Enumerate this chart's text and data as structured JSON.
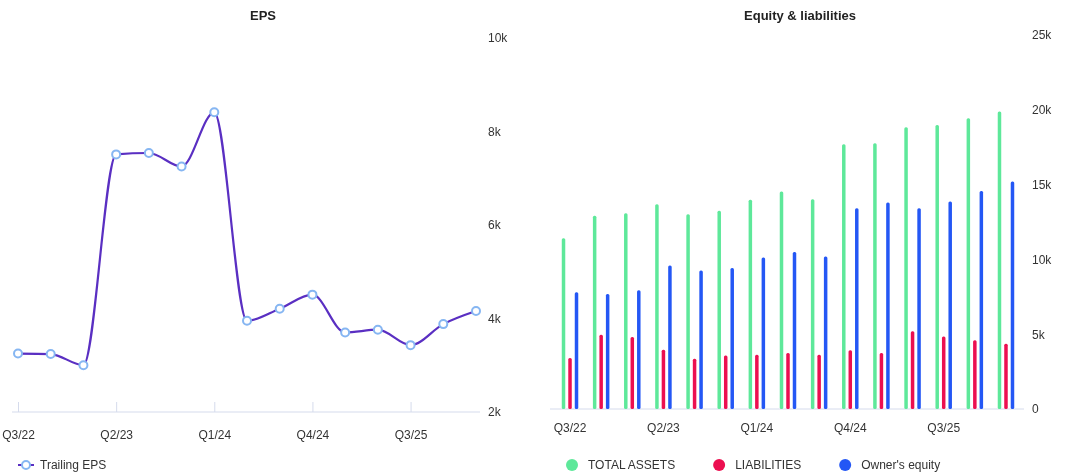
{
  "chart_data": [
    {
      "type": "line",
      "title": "EPS",
      "categories": [
        "Q3/22",
        null,
        null,
        "Q2/23",
        null,
        null,
        "Q1/24",
        null,
        null,
        "Q4/24",
        null,
        null,
        "Q3/25",
        null,
        null
      ],
      "series": [
        {
          "name": "Trailing EPS",
          "color": "#5a2fc2",
          "values": [
            3250,
            3240,
            3000,
            7510,
            7540,
            7250,
            8410,
            3950,
            4210,
            4510,
            3700,
            3760,
            3430,
            3880,
            4160
          ]
        }
      ],
      "ylim": [
        2000,
        10000
      ],
      "yticks": [
        {
          "value": 2000,
          "label": "2k"
        },
        {
          "value": 4000,
          "label": "4k"
        },
        {
          "value": 6000,
          "label": "6k"
        },
        {
          "value": 8000,
          "label": "8k"
        },
        {
          "value": 10000,
          "label": "10k"
        }
      ],
      "marker": "circle",
      "grid": false,
      "legend": "bottom left"
    },
    {
      "type": "bar",
      "title": "Equity & liabilities",
      "categories": [
        "Q3/22",
        null,
        null,
        "Q2/23",
        null,
        null,
        "Q1/24",
        null,
        null,
        "Q4/24",
        null,
        null,
        "Q3/25",
        null,
        null
      ],
      "series": [
        {
          "name": "TOTAL ASSETS",
          "color": "#5ee89a",
          "values": [
            11420,
            12910,
            13090,
            13690,
            13020,
            13250,
            13980,
            14540,
            14020,
            17700,
            17770,
            18830,
            18990,
            19430,
            19880
          ]
        },
        {
          "name": "LIABILITIES",
          "color": "#ec0f50",
          "values": [
            3410,
            4960,
            4810,
            3960,
            3360,
            3580,
            3630,
            3740,
            3630,
            3920,
            3740,
            5190,
            4850,
            4590,
            4360
          ]
        },
        {
          "name": "Owner's equity",
          "color": "#2457f5",
          "values": [
            7810,
            7680,
            7930,
            9590,
            9260,
            9420,
            10130,
            10490,
            10200,
            13420,
            13800,
            13420,
            13870,
            14580,
            15200
          ]
        }
      ],
      "ylim": [
        0,
        25000
      ],
      "yticks": [
        {
          "value": 0,
          "label": "0"
        },
        {
          "value": 5000,
          "label": "5k"
        },
        {
          "value": 10000,
          "label": "10k"
        },
        {
          "value": 15000,
          "label": "15k"
        },
        {
          "value": 20000,
          "label": "20k"
        },
        {
          "value": 25000,
          "label": "25k"
        }
      ],
      "grid": false,
      "legend": "bottom"
    }
  ]
}
